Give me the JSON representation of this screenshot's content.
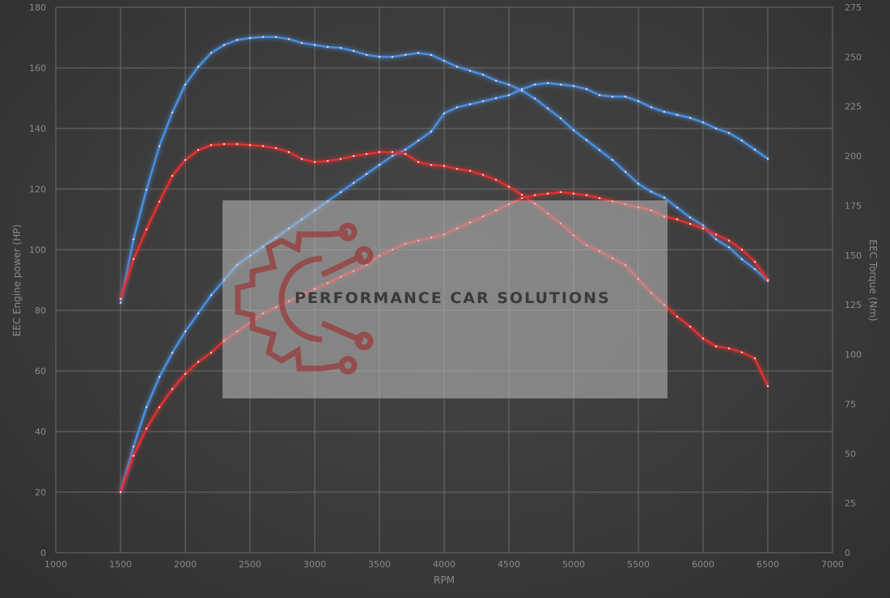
{
  "watermark": {
    "text": "PERFORMANCE CAR SOLUTIONS",
    "logo": "gear-circuit-logo"
  },
  "chart_data": {
    "type": "line",
    "xlabel": "RPM",
    "ylabel_left": "EEC Engine power (HP)",
    "ylabel_right": "EEC Torque (Nm)",
    "xlim": [
      1000,
      7000
    ],
    "ylim_left": [
      0,
      180
    ],
    "ylim_right": [
      0,
      275
    ],
    "x_ticks": [
      1000,
      1500,
      2000,
      2500,
      3000,
      3500,
      4000,
      4500,
      5000,
      5500,
      6000,
      6500,
      7000
    ],
    "y_ticks_left": [
      0,
      20,
      40,
      60,
      80,
      100,
      120,
      140,
      160,
      180
    ],
    "y_ticks_right": [
      0,
      25,
      50,
      75,
      100,
      125,
      150,
      175,
      200,
      225,
      250,
      275
    ],
    "grid": true,
    "series": [
      {
        "color": "#4a8fe0",
        "axis": "left",
        "x": [
          1500,
          1600,
          1700,
          1800,
          1900,
          2000,
          2100,
          2200,
          2300,
          2400,
          2500,
          2600,
          2700,
          2800,
          2900,
          3000,
          3100,
          3200,
          3300,
          3400,
          3500,
          3600,
          3700,
          3800,
          3900,
          4000,
          4100,
          4200,
          4300,
          4400,
          4500,
          4600,
          4700,
          4800,
          4900,
          5000,
          5100,
          5200,
          5300,
          5400,
          5500,
          5600,
          5700,
          5800,
          5900,
          6000,
          6100,
          6200,
          6300,
          6400,
          6500
        ],
        "values": [
          20,
          35,
          48,
          58,
          66,
          73,
          79,
          85,
          90,
          95,
          98,
          101,
          104,
          107,
          110,
          113,
          116,
          119,
          122,
          125,
          128,
          131,
          133,
          136,
          139,
          145,
          147,
          148,
          149,
          150,
          151,
          153,
          154.5,
          155,
          154.5,
          154,
          153,
          151,
          150.5,
          150.5,
          149,
          147,
          145.5,
          144.5,
          143.5,
          142,
          140,
          138.5,
          136,
          133,
          130
        ]
      },
      {
        "color": "#4a8fe0",
        "axis": "right",
        "x": [
          1500,
          1600,
          1700,
          1800,
          1900,
          2000,
          2100,
          2200,
          2300,
          2400,
          2500,
          2600,
          2700,
          2800,
          2900,
          3000,
          3100,
          3200,
          3300,
          3400,
          3500,
          3600,
          3700,
          3800,
          3900,
          4000,
          4100,
          4200,
          4300,
          4400,
          4500,
          4600,
          4700,
          4800,
          4900,
          5000,
          5100,
          5200,
          5300,
          5400,
          5500,
          5600,
          5700,
          5800,
          5900,
          6000,
          6100,
          6200,
          6300,
          6400,
          6500
        ],
        "values": [
          126,
          158,
          183,
          205,
          222,
          236,
          245,
          252,
          256,
          258.5,
          259.5,
          260,
          260,
          259,
          257,
          256,
          255,
          254.5,
          253,
          251,
          250,
          250,
          251,
          252,
          251,
          248,
          245,
          243,
          241,
          238,
          236,
          233,
          229,
          224,
          219,
          213,
          208,
          203,
          198,
          192,
          186,
          182,
          179,
          174,
          169,
          165,
          158,
          154,
          148,
          143,
          137
        ]
      },
      {
        "color": "#e03030",
        "axis": "left",
        "x": [
          1500,
          1600,
          1700,
          1800,
          1900,
          2000,
          2100,
          2200,
          2300,
          2400,
          2500,
          2600,
          2700,
          2800,
          2900,
          3000,
          3100,
          3200,
          3300,
          3400,
          3500,
          3600,
          3700,
          3800,
          3900,
          4000,
          4100,
          4200,
          4300,
          4400,
          4500,
          4600,
          4700,
          4800,
          4900,
          5000,
          5100,
          5200,
          5300,
          5400,
          5500,
          5600,
          5700,
          5800,
          5900,
          6000,
          6100,
          6200,
          6300,
          6400,
          6500
        ],
        "values": [
          20,
          32,
          41,
          48,
          54,
          59,
          63,
          66,
          70,
          73,
          76,
          79,
          81,
          83,
          85,
          87,
          89,
          91,
          93,
          95,
          98,
          100,
          102,
          103,
          104,
          105,
          107,
          109,
          111,
          113,
          115,
          117,
          118,
          118.5,
          119,
          118.5,
          118,
          117,
          116,
          115,
          114,
          113,
          111,
          110,
          108.5,
          107,
          105,
          103,
          100,
          96,
          90
        ]
      },
      {
        "color": "#e03030",
        "axis": "right",
        "x": [
          1500,
          1600,
          1700,
          1800,
          1900,
          2000,
          2100,
          2200,
          2300,
          2400,
          2500,
          2600,
          2700,
          2800,
          2900,
          3000,
          3100,
          3200,
          3300,
          3400,
          3500,
          3600,
          3700,
          3800,
          3900,
          4000,
          4100,
          4200,
          4300,
          4400,
          4500,
          4600,
          4700,
          4800,
          4900,
          5000,
          5100,
          5200,
          5300,
          5400,
          5500,
          5600,
          5700,
          5800,
          5900,
          6000,
          6100,
          6200,
          6300,
          6400,
          6500
        ],
        "values": [
          128,
          148,
          163,
          177,
          190,
          198,
          203,
          205.5,
          206,
          206,
          205.5,
          205,
          204,
          202,
          198.5,
          197,
          197.5,
          198.5,
          200,
          201,
          202,
          202,
          201,
          197,
          195.5,
          195,
          193.5,
          192.5,
          190.5,
          188,
          184.5,
          180.5,
          176,
          171,
          166,
          160,
          155,
          152,
          148.5,
          145,
          138,
          131,
          125,
          119,
          114,
          108,
          104,
          103,
          101,
          98,
          84
        ]
      }
    ]
  }
}
